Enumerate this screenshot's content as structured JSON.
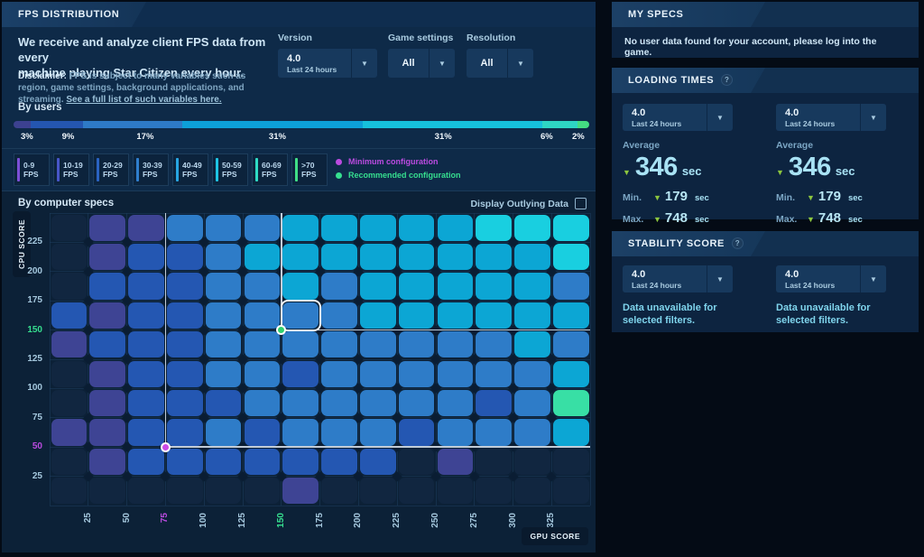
{
  "left_panel": {
    "header": {
      "title": "FPS DISTRIBUTION"
    },
    "intro": {
      "line1": "We receive and analyze client FPS data from every",
      "line2": "machine playing Star Citizen every hour."
    },
    "disclaimer": {
      "label": "Disclaimer:",
      "text": " FPS is subject to many variables such as region, game settings, background applications, and streaming. ",
      "link": "See a full list of such variables here."
    },
    "filters": [
      {
        "label": "Version",
        "value": "4.0",
        "sublabel": "Last 24 hours"
      },
      {
        "label": "Game settings",
        "value": "All",
        "sublabel": ""
      },
      {
        "label": "Resolution",
        "value": "All",
        "sublabel": ""
      }
    ],
    "by_users_label": "By users",
    "fps_unit": "FPS",
    "config_legend": [
      {
        "label": "Minimum configuration",
        "color": "#bb4be0"
      },
      {
        "label": "Recommended configuration",
        "color": "#36df8f"
      }
    ],
    "by_specs_label": "By computer specs",
    "outlying_label": "Display Outlying Data",
    "cpu_axis_label": "CPU SCORE",
    "gpu_axis_label": "GPU SCORE"
  },
  "chart_data": [
    {
      "type": "bar",
      "subtype": "stacked-horizontal",
      "title": "By users",
      "segments": [
        {
          "label": "3%",
          "value": 3,
          "color": "#3c4190"
        },
        {
          "label": "9%",
          "value": 9,
          "color": "#2456b0"
        },
        {
          "label": "17%",
          "value": 17,
          "color": "#2e7ac6"
        },
        {
          "label": "31%",
          "value": 31,
          "color": "#0d9fd8"
        },
        {
          "label": "31%",
          "value": 31,
          "color": "#16c0dc"
        },
        {
          "label": "6%",
          "value": 6,
          "color": "#2ed5c4"
        },
        {
          "label": "2%",
          "value": 2,
          "color": "#44dc82"
        }
      ]
    },
    {
      "type": "heatmap",
      "title": "By computer specs",
      "xlabel": "GPU SCORE",
      "ylabel": "CPU SCORE",
      "x_ticks": [
        "25",
        "50",
        "75",
        "100",
        "125",
        "150",
        "175",
        "200",
        "225",
        "250",
        "275",
        "300",
        "325"
      ],
      "y_ticks": [
        "225",
        "200",
        "175",
        "150",
        "125",
        "100",
        "75",
        "50",
        "25"
      ],
      "x_tick_colors": {
        "75": "#bb4be0",
        "150": "#36df8f"
      },
      "y_tick_colors": {
        "50": "#bb4be0",
        "150": "#36df8f"
      },
      "legend_buckets": [
        {
          "range": "0-9",
          "color": "#7c4fd6"
        },
        {
          "range": "10-19",
          "color": "#4756c8"
        },
        {
          "range": "20-29",
          "color": "#2a63c2"
        },
        {
          "range": "30-39",
          "color": "#2f7ecd"
        },
        {
          "range": "40-49",
          "color": "#27a5e2"
        },
        {
          "range": "50-59",
          "color": "#1ec4e4"
        },
        {
          "range": "60-69",
          "color": "#2edac4"
        },
        {
          "range": ">70",
          "color": "#3fdf86"
        }
      ],
      "palette": {
        "e": "#112640",
        "i": "#3e4494",
        "b": "#2457b2",
        "m": "#2e7cc8",
        "c": "#0ca6d4",
        "C": "#19cfe0",
        "g": "#38dfa5"
      },
      "rows": [
        "eiimmmcccccCCC",
        "eibbmccccccccC",
        "ebbbmmcmcccccm",
        "bibbmmmmcccccc",
        "ibbbmmmmmmmmcm",
        "eibbmmbmmmmmmc",
        "eibbbmmmmmmbmg",
        "iibbmbmmmbmmmc",
        "eibbbbbbbeieee",
        "eeeeeeieeeeeee"
      ],
      "highlight_cell": {
        "row": 3,
        "col": 6
      },
      "min_config": {
        "x_index": 3,
        "y_index": 8,
        "color": "#cb49e6"
      },
      "rec_config": {
        "x_index": 6,
        "y_index": 4,
        "color": "#2fd06e"
      }
    }
  ],
  "right_panels": {
    "my_specs": {
      "title": "MY SPECS",
      "note": "No user data found for your account, please log into the game."
    },
    "loading_times": {
      "title": "LOADING TIMES",
      "help_icon": "?",
      "columns": [
        {
          "version": "4.0",
          "period": "Last 24 hours",
          "average_label": "Average",
          "average_value": "346",
          "unit": "sec",
          "min_label": "Min.",
          "min_value": "179",
          "max_label": "Max.",
          "max_value": "748"
        },
        {
          "version": "4.0",
          "period": "Last 24 hours",
          "average_label": "Average",
          "average_value": "346",
          "unit": "sec",
          "min_label": "Min.",
          "min_value": "179",
          "max_label": "Max.",
          "max_value": "748"
        }
      ]
    },
    "stability_score": {
      "title": "STABILITY SCORE",
      "help_icon": "?",
      "columns": [
        {
          "version": "4.0",
          "period": "Last 24 hours",
          "message": "Data unavailable for selected filters."
        },
        {
          "version": "4.0",
          "period": "Last 24 hours",
          "message": "Data unavailable for selected filters."
        }
      ]
    }
  }
}
